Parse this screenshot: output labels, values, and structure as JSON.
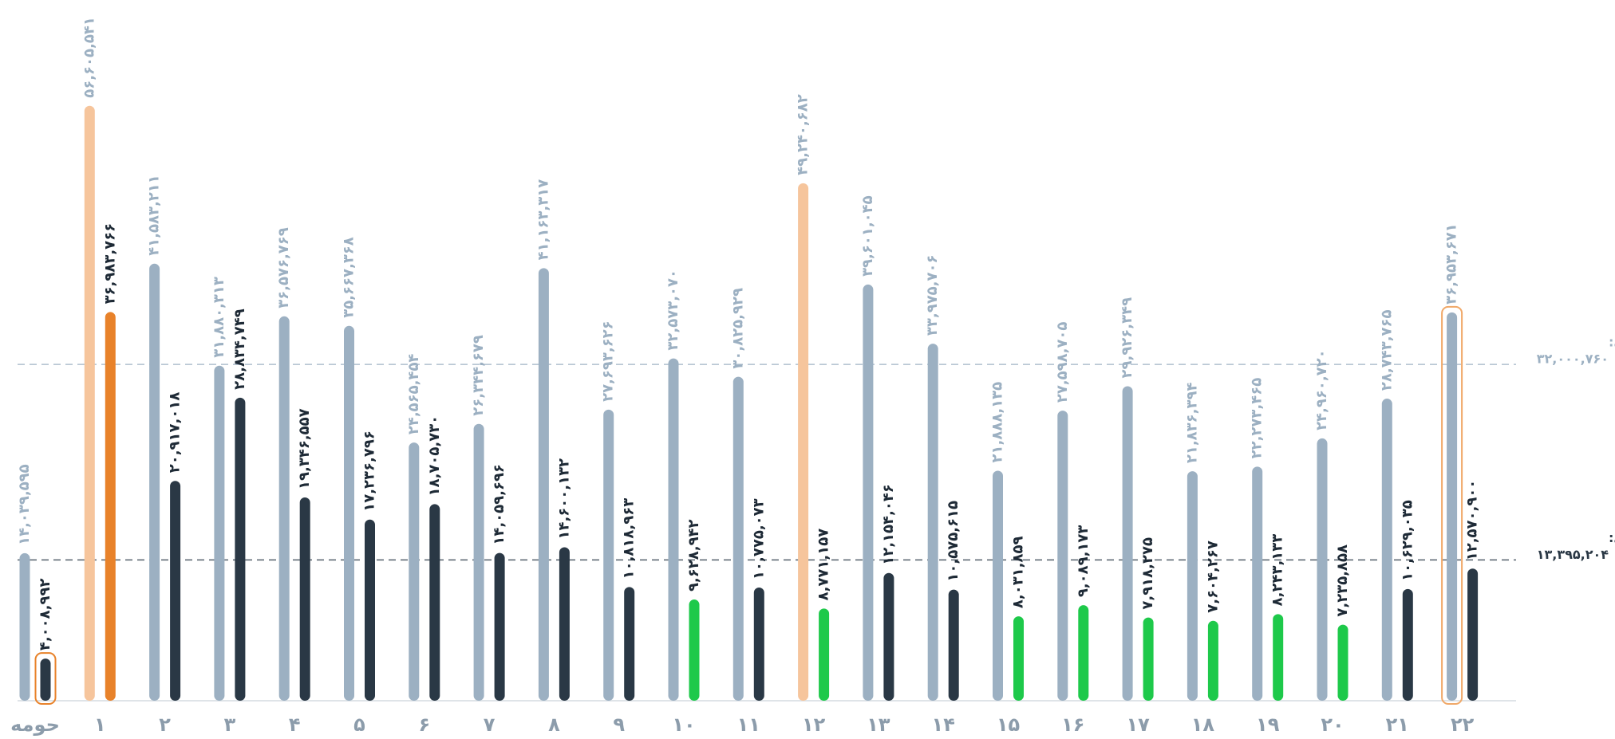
{
  "chart_data": {
    "type": "bar",
    "categories": [
      "حومه",
      "۱",
      "۲",
      "۳",
      "۴",
      "۵",
      "۶",
      "۷",
      "۸",
      "۹",
      "۱۰",
      "۱۱",
      "۱۲",
      "۱۳",
      "۱۴",
      "۱۵",
      "۱۶",
      "۱۷",
      "۱۸",
      "۱۹",
      "۲۰",
      "۲۱",
      "۲۲"
    ],
    "ylim": [
      0,
      60000000
    ],
    "series": [
      {
        "values": [
          14039595,
          56605541,
          41583211,
          31880313,
          36576769,
          35667368,
          24565454,
          26344679,
          41163317,
          27693626,
          32573070,
          30825929,
          49240682,
          39601045,
          33975706,
          21888135,
          27598705,
          29926349,
          21836394,
          22273465,
          24960720,
          28743765,
          36953671
        ],
        "value_labels": [
          "۱۴,۰۳۹,۵۹۵",
          "۵۶,۶۰۵,۵۴۱",
          "۴۱,۵۸۳,۲۱۱",
          "۳۱,۸۸۰,۳۱۳",
          "۳۶,۵۷۶,۷۶۹",
          "۳۵,۶۶۷,۳۶۸",
          "۲۴,۵۶۵,۴۵۴",
          "۲۶,۳۴۴,۶۷۹",
          "۴۱,۱۶۳,۳۱۷",
          "۲۷,۶۹۳,۶۲۶",
          "۳۲,۵۷۳,۰۷۰",
          "۳۰,۸۲۵,۹۲۹",
          "۴۹,۲۴۰,۶۸۲",
          "۳۹,۶۰۱,۰۴۵",
          "۳۳,۹۷۵,۷۰۶",
          "۲۱,۸۸۸,۱۳۵",
          "۲۷,۵۹۸,۷۰۵",
          "۲۹,۹۲۶,۳۴۹",
          "۲۱,۸۳۶,۳۹۴",
          "۲۲,۲۷۳,۴۶۵",
          "۲۴,۹۶۰,۷۲۰",
          "۲۸,۷۴۳,۷۶۵",
          "۳۶,۹۵۳,۶۷۱"
        ],
        "colors": [
          "#9cb0c2",
          "#f6c59c",
          "#9cb0c2",
          "#9cb0c2",
          "#9cb0c2",
          "#9cb0c2",
          "#9cb0c2",
          "#9cb0c2",
          "#9cb0c2",
          "#9cb0c2",
          "#9cb0c2",
          "#9cb0c2",
          "#f6c59c",
          "#9cb0c2",
          "#9cb0c2",
          "#9cb0c2",
          "#9cb0c2",
          "#9cb0c2",
          "#9cb0c2",
          "#9cb0c2",
          "#9cb0c2",
          "#9cb0c2",
          "#9cb0c2"
        ],
        "label_color": "#9cb0c2",
        "outlines": [
          null,
          null,
          null,
          null,
          null,
          null,
          null,
          null,
          null,
          null,
          null,
          null,
          null,
          null,
          null,
          null,
          null,
          null,
          null,
          null,
          null,
          null,
          "#f0a868"
        ]
      },
      {
        "values": [
          4008992,
          36983766,
          20917018,
          28834749,
          19346557,
          17236796,
          18705730,
          14059696,
          14600132,
          10818963,
          9628942,
          10775073,
          8771157,
          12154046,
          10575615,
          8031859,
          9089173,
          7918275,
          7604267,
          8243133,
          7235858,
          10629035,
          12570900
        ],
        "value_labels": [
          "۴,۰۰۸,۹۹۲",
          "۳۶,۹۸۳,۷۶۶",
          "۲۰,۹۱۷,۰۱۸",
          "۲۸,۸۳۴,۷۴۹",
          "۱۹,۳۴۶,۵۵۷",
          "۱۷,۲۳۶,۷۹۶",
          "۱۸,۷۰۵,۷۳۰",
          "۱۴,۰۵۹,۶۹۶",
          "۱۴,۶۰۰,۱۳۲",
          "۱۰,۸۱۸,۹۶۳",
          "۹,۶۲۸,۹۴۲",
          "۱۰,۷۷۵,۰۷۳",
          "۸,۷۷۱,۱۵۷",
          "۱۲,۱۵۴,۰۴۶",
          "۱۰,۵۷۵,۶۱۵",
          "۸,۰۳۱,۸۵۹",
          "۹,۰۸۹,۱۷۳",
          "۷,۹۱۸,۲۷۵",
          "۷,۶۰۴,۲۶۷",
          "۸,۲۴۳,۱۳۳",
          "۷,۲۳۵,۸۵۸",
          "۱۰,۶۲۹,۰۳۵",
          "۱۲,۵۷۰,۹۰۰"
        ],
        "colors": [
          "#2a3845",
          "#e8822a",
          "#2a3845",
          "#2a3845",
          "#2a3845",
          "#2a3845",
          "#2a3845",
          "#2a3845",
          "#2a3845",
          "#2a3845",
          "#1ec94a",
          "#2a3845",
          "#1ec94a",
          "#2a3845",
          "#2a3845",
          "#1ec94a",
          "#1ec94a",
          "#1ec94a",
          "#1ec94a",
          "#1ec94a",
          "#1ec94a",
          "#2a3845",
          "#2a3845"
        ],
        "label_color": "#1e2a36",
        "outlines": [
          "#e8822a",
          null,
          null,
          null,
          null,
          null,
          null,
          null,
          null,
          null,
          null,
          null,
          null,
          null,
          null,
          null,
          null,
          null,
          null,
          null,
          null,
          null,
          null
        ]
      }
    ],
    "reference_lines": [
      {
        "label": "میانگین اداری و تجاری:",
        "value": 32000760,
        "value_label": "۳۲,۰۰۰,۷۶۰",
        "color": "#9cb0c2"
      },
      {
        "label": "میانگین مسکونی:",
        "value": 13395204,
        "value_label": "۱۳,۳۹۵,۲۰۴",
        "color": "#2a3845"
      }
    ]
  }
}
